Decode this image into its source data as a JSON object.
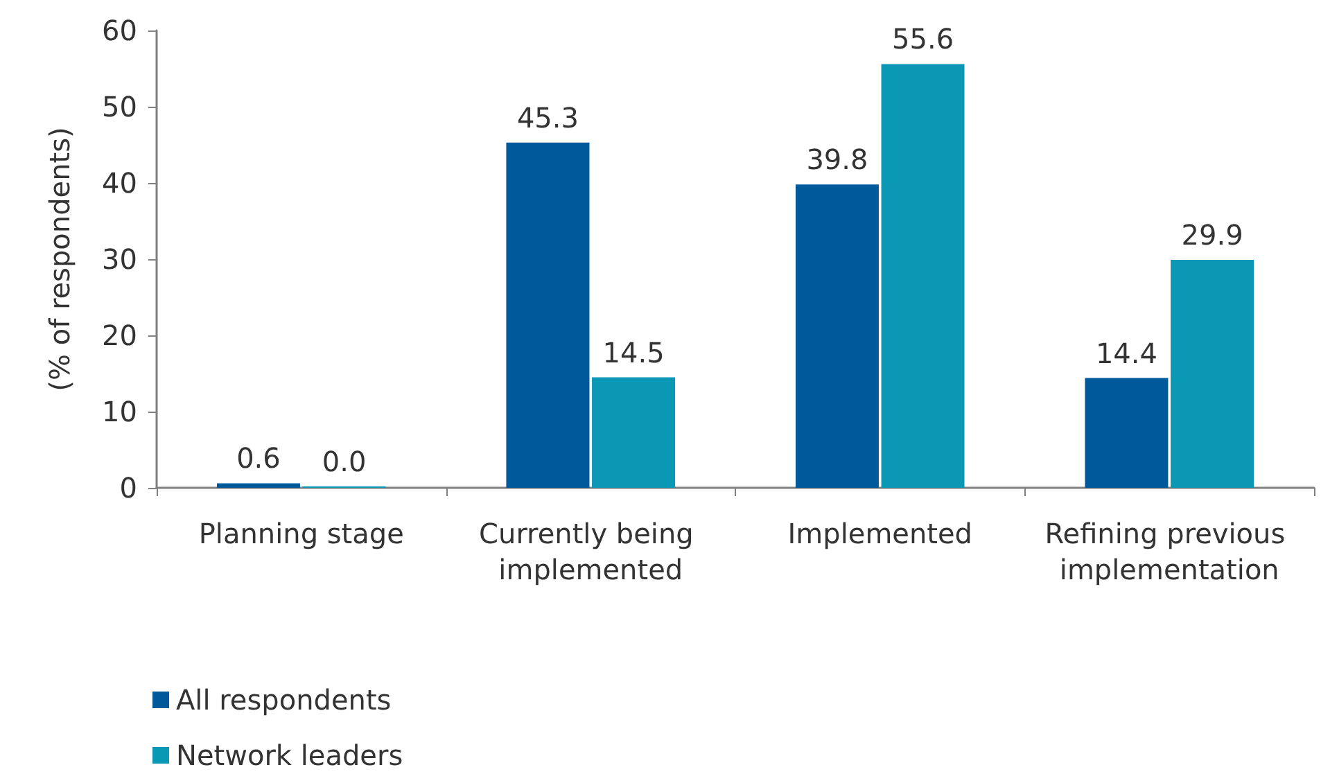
{
  "chart_data": {
    "type": "bar",
    "ylabel": "(% of respondents)",
    "categories": [
      "Planning stage",
      "Currently being implemented",
      "Implemented",
      "Refining previous implementation"
    ],
    "series": [
      {
        "name": "All respondents",
        "color": "#005a9a",
        "values": [
          0.6,
          45.3,
          39.8,
          14.4
        ],
        "value_labels": [
          "0.6",
          "45.3",
          "39.8",
          "14.4"
        ]
      },
      {
        "name": "Network leaders",
        "color": "#0b98b4",
        "values": [
          0,
          14.5,
          55.6,
          29.9
        ],
        "value_labels": [
          "0.0",
          "14.5",
          "55.6",
          "29.9"
        ]
      }
    ],
    "ylim": [
      0,
      60
    ],
    "yticks": [
      0,
      10,
      20,
      30,
      40,
      50,
      60
    ],
    "grid": false,
    "legend": "bottom left"
  }
}
